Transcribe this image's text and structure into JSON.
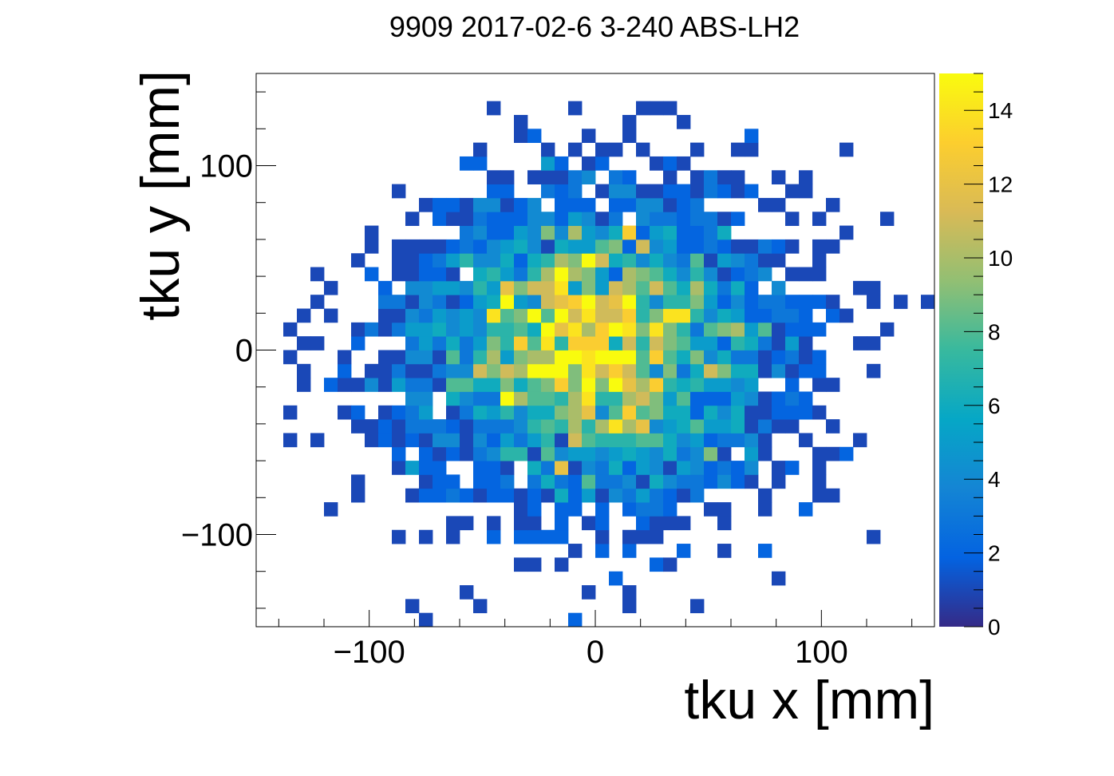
{
  "chart_data": {
    "type": "heatmap",
    "title": "9909 2017-02-6 3-240 ABS-LH2",
    "xlabel": "tku x [mm]",
    "ylabel": "tku y [mm]",
    "xlim": [
      -150,
      150
    ],
    "ylim": [
      -150,
      150
    ],
    "bins": {
      "nx": 50,
      "ny": 40
    },
    "x_ticks": [
      -100,
      0,
      100
    ],
    "y_ticks": [
      -100,
      0,
      100
    ],
    "x_tick_labels": [
      "−100",
      "0",
      "100"
    ],
    "y_tick_labels": [
      "−100",
      "0",
      "100"
    ],
    "zlim": [
      0,
      15
    ],
    "z_ticks": [
      0,
      2,
      4,
      6,
      8,
      10,
      12,
      14
    ],
    "z_tick_labels": [
      "0",
      "2",
      "4",
      "6",
      "8",
      "10",
      "12",
      "14"
    ],
    "colormap": [
      "#352a87",
      "#0363e1",
      "#1485d4",
      "#06a7c6",
      "#38b99e",
      "#92bf73",
      "#d9ba56",
      "#fcce2e",
      "#f9fb0e"
    ],
    "distribution": {
      "center": [
        0,
        0
      ],
      "sigma": [
        45,
        45
      ],
      "peak": 12.5,
      "hot_spots": [
        {
          "x": -39,
          "y": 27,
          "value": 15
        },
        {
          "x": -3,
          "y": 27,
          "value": 15
        },
        {
          "x": 15,
          "y": 27,
          "value": 15
        },
        {
          "x": 9,
          "y": 9,
          "value": 15
        },
        {
          "x": 3,
          "y": -3,
          "value": 15
        },
        {
          "x": -15,
          "y": -15,
          "value": 15
        },
        {
          "x": -21,
          "y": 3,
          "value": 14
        },
        {
          "x": 9,
          "y": -39,
          "value": 14
        },
        {
          "x": 15,
          "y": 63,
          "value": 13
        },
        {
          "x": -3,
          "y": -15,
          "value": 14
        },
        {
          "x": 9,
          "y": -15,
          "value": 13
        }
      ]
    }
  }
}
